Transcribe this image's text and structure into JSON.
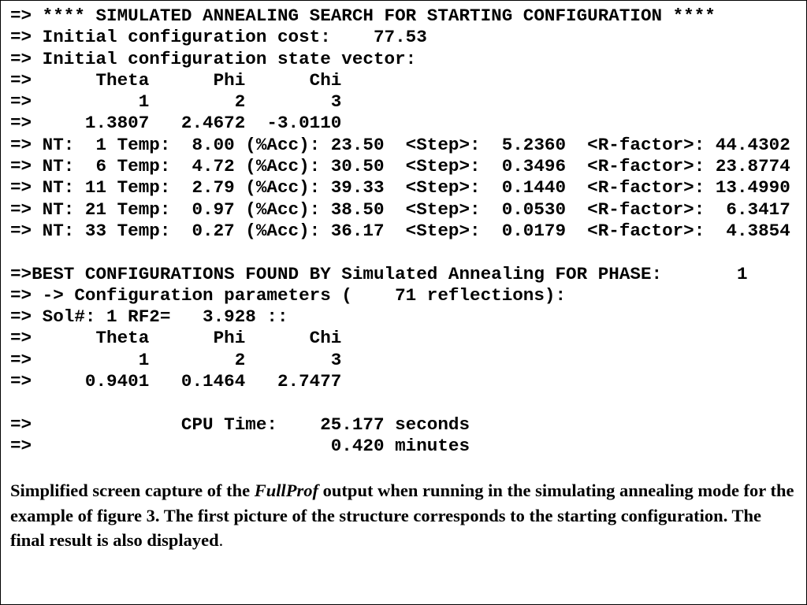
{
  "terminal": {
    "lines": [
      "=> **** SIMULATED ANNEALING SEARCH FOR STARTING CONFIGURATION ****",
      "=> Initial configuration cost:    77.53",
      "=> Initial configuration state vector:",
      "=>      Theta      Phi      Chi",
      "=>          1        2        3",
      "=>     1.3807   2.4672  -3.0110",
      "=> NT:  1 Temp:  8.00 (%Acc): 23.50  <Step>:  5.2360  <R-factor>: 44.4302",
      "=> NT:  6 Temp:  4.72 (%Acc): 30.50  <Step>:  0.3496  <R-factor>: 23.8774",
      "=> NT: 11 Temp:  2.79 (%Acc): 39.33  <Step>:  0.1440  <R-factor>: 13.4990",
      "=> NT: 21 Temp:  0.97 (%Acc): 38.50  <Step>:  0.0530  <R-factor>:  6.3417",
      "=> NT: 33 Temp:  0.27 (%Acc): 36.17  <Step>:  0.0179  <R-factor>:  4.3854",
      "",
      "=>BEST CONFIGURATIONS FOUND BY Simulated Annealing FOR PHASE:       1",
      "=> -> Configuration parameters (    71 reflections):",
      "=> Sol#: 1 RF2=   3.928 ::",
      "=>      Theta      Phi      Chi",
      "=>          1        2        3",
      "=>     0.9401   0.1464   2.7477",
      "",
      "=>              CPU Time:    25.177 seconds",
      "=>                            0.420 minutes"
    ]
  },
  "caption": {
    "before": "Simplified screen capture of the ",
    "program": "FullProf",
    "after": " output when running in the simulating annealing mode for the example of figure 3. The first picture of the structure corresponds to the starting configuration. The final result is also displayed",
    "period": "."
  }
}
